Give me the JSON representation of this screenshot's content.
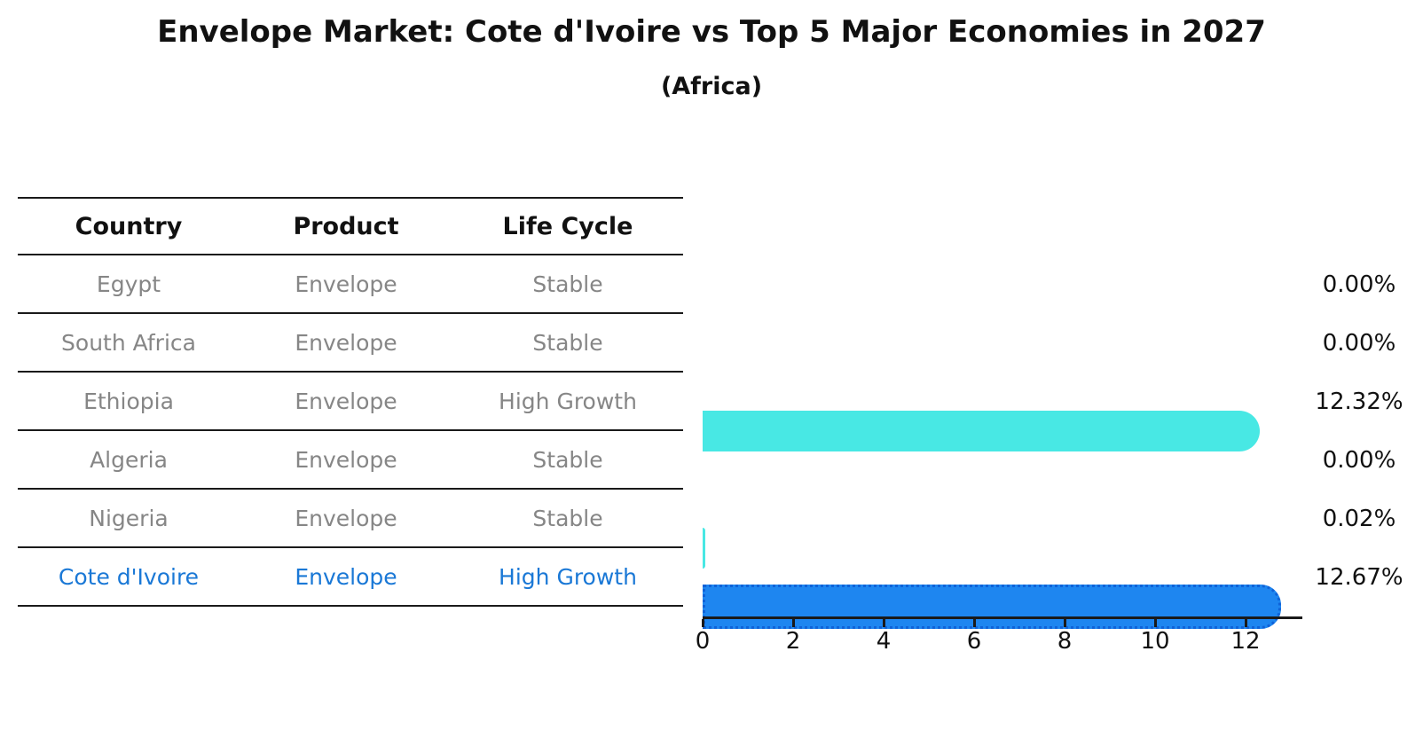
{
  "title": "Envelope Market: Cote d'Ivoire vs Top 5 Major Economies in 2027",
  "subtitle": "(Africa)",
  "table": {
    "headers": {
      "country": "Country",
      "product": "Product",
      "life_cycle": "Life Cycle"
    },
    "rows": [
      {
        "country": "Egypt",
        "product": "Envelope",
        "life_cycle": "Stable",
        "highlight": false
      },
      {
        "country": "South Africa",
        "product": "Envelope",
        "life_cycle": "Stable",
        "highlight": false
      },
      {
        "country": "Ethiopia",
        "product": "Envelope",
        "life_cycle": "High Growth",
        "highlight": false
      },
      {
        "country": "Algeria",
        "product": "Envelope",
        "life_cycle": "Stable",
        "highlight": false
      },
      {
        "country": "Nigeria",
        "product": "Envelope",
        "life_cycle": "Stable",
        "highlight": false
      },
      {
        "country": "Cote d'Ivoire",
        "product": "Envelope",
        "life_cycle": "High Growth",
        "highlight": true
      }
    ]
  },
  "chart_data": {
    "type": "bar",
    "orientation": "horizontal",
    "title": "Envelope Market: Cote d'Ivoire vs Top 5 Major Economies in 2027",
    "subtitle": "(Africa)",
    "categories": [
      "Egypt",
      "South Africa",
      "Ethiopia",
      "Algeria",
      "Nigeria",
      "Cote d'Ivoire"
    ],
    "values": [
      0.0,
      0.0,
      12.32,
      0.0,
      0.02,
      12.67
    ],
    "value_labels": [
      "0.00%",
      "0.00%",
      "12.32%",
      "0.00%",
      "0.02%",
      "12.67%"
    ],
    "xlabel": "",
    "ylabel": "",
    "xlim": [
      0,
      13.25
    ],
    "xticks": [
      "0",
      "2",
      "4",
      "6",
      "8",
      "10",
      "12"
    ],
    "grid": false,
    "legend": false,
    "colors": {
      "bar_fill": "#48e8e4",
      "highlight_bar_fill": "#1e86f0",
      "highlight_bar_edge": "#0f62d8",
      "highlight_text": "#1a78d6",
      "row_text": "#868686",
      "axis": "#1a1a1a"
    }
  }
}
